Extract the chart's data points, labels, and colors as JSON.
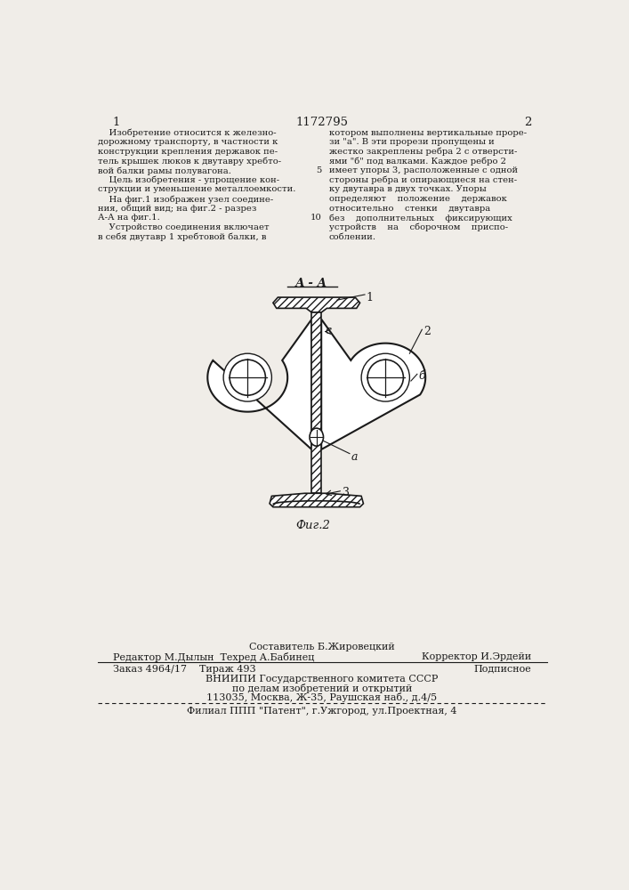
{
  "page_number_left": "1",
  "page_number_center": "1172795",
  "page_number_right": "2",
  "left_column_text": [
    "    Изобретение относится к железно-",
    "дорожному транспорту, в частности к",
    "конструкции крепления державок пе-",
    "тель крышек люков к двутавру хребто-",
    "вой балки рамы полувагона.",
    "    Цель изобретения - упрощение кон-",
    "струкции и уменьшение металлоемкости.",
    "    На фиг.1 изображен узел соедине-",
    "ния, общий вид; на фиг.2 - разрез",
    "А-А на фиг.1.",
    "    Устройство соединения включает",
    "в себя двутавр 1 хребтовой балки, в"
  ],
  "right_column_text": [
    "котором выполнены вертикальные прорe-",
    "зи \"а\". В эти прорези пропущены и",
    "жестко закреплены ребра 2 с отверсти-",
    "ями \"б\" под валками. Каждое ребро 2",
    "имеет упоры 3, расположенные с одной",
    "стороны ребра и опирающиеся на стен-",
    "ку двутавра в двух точках. Упоры",
    "определяют    положение    державок",
    "относительно    стенки    двутавра",
    "без    дополнительных    фиксирующих",
    "устройств    на    сборочном    приспо-",
    "соблении."
  ],
  "line_num_5_row": 4,
  "line_num_10_row": 9,
  "fig_label": "А - А",
  "fig2_label": "Фuг.2",
  "label_1": "1",
  "label_2": "2",
  "label_C": "с",
  "label_b": "б",
  "label_a": "а",
  "label_3": "3",
  "footer_line1": "Составитель Б.Жировецкий",
  "footer_line2_left": "Редактор М.Дылын  Техред А.Бабинец",
  "footer_line2_right": "Корректор И.Эрдейи",
  "footer_line3_left": "Заказ 4964/17    Тираж 493",
  "footer_line3_right": "Подписное",
  "footer_line4": "ВНИИПИ Государственного комитета СССР",
  "footer_line5": "по делам изобретений и открытий",
  "footer_line6": "113035, Москва, Ж-35, Раушская наб., д.4/5",
  "footer_line7": "Филиал ППП \"Патент\", г.Ужгород, ул.Проектная, 4",
  "bg_color": "#f0ede8",
  "text_color": "#1a1a1a",
  "drawing_color": "#1a1a1a",
  "hatch_color": "#333333"
}
